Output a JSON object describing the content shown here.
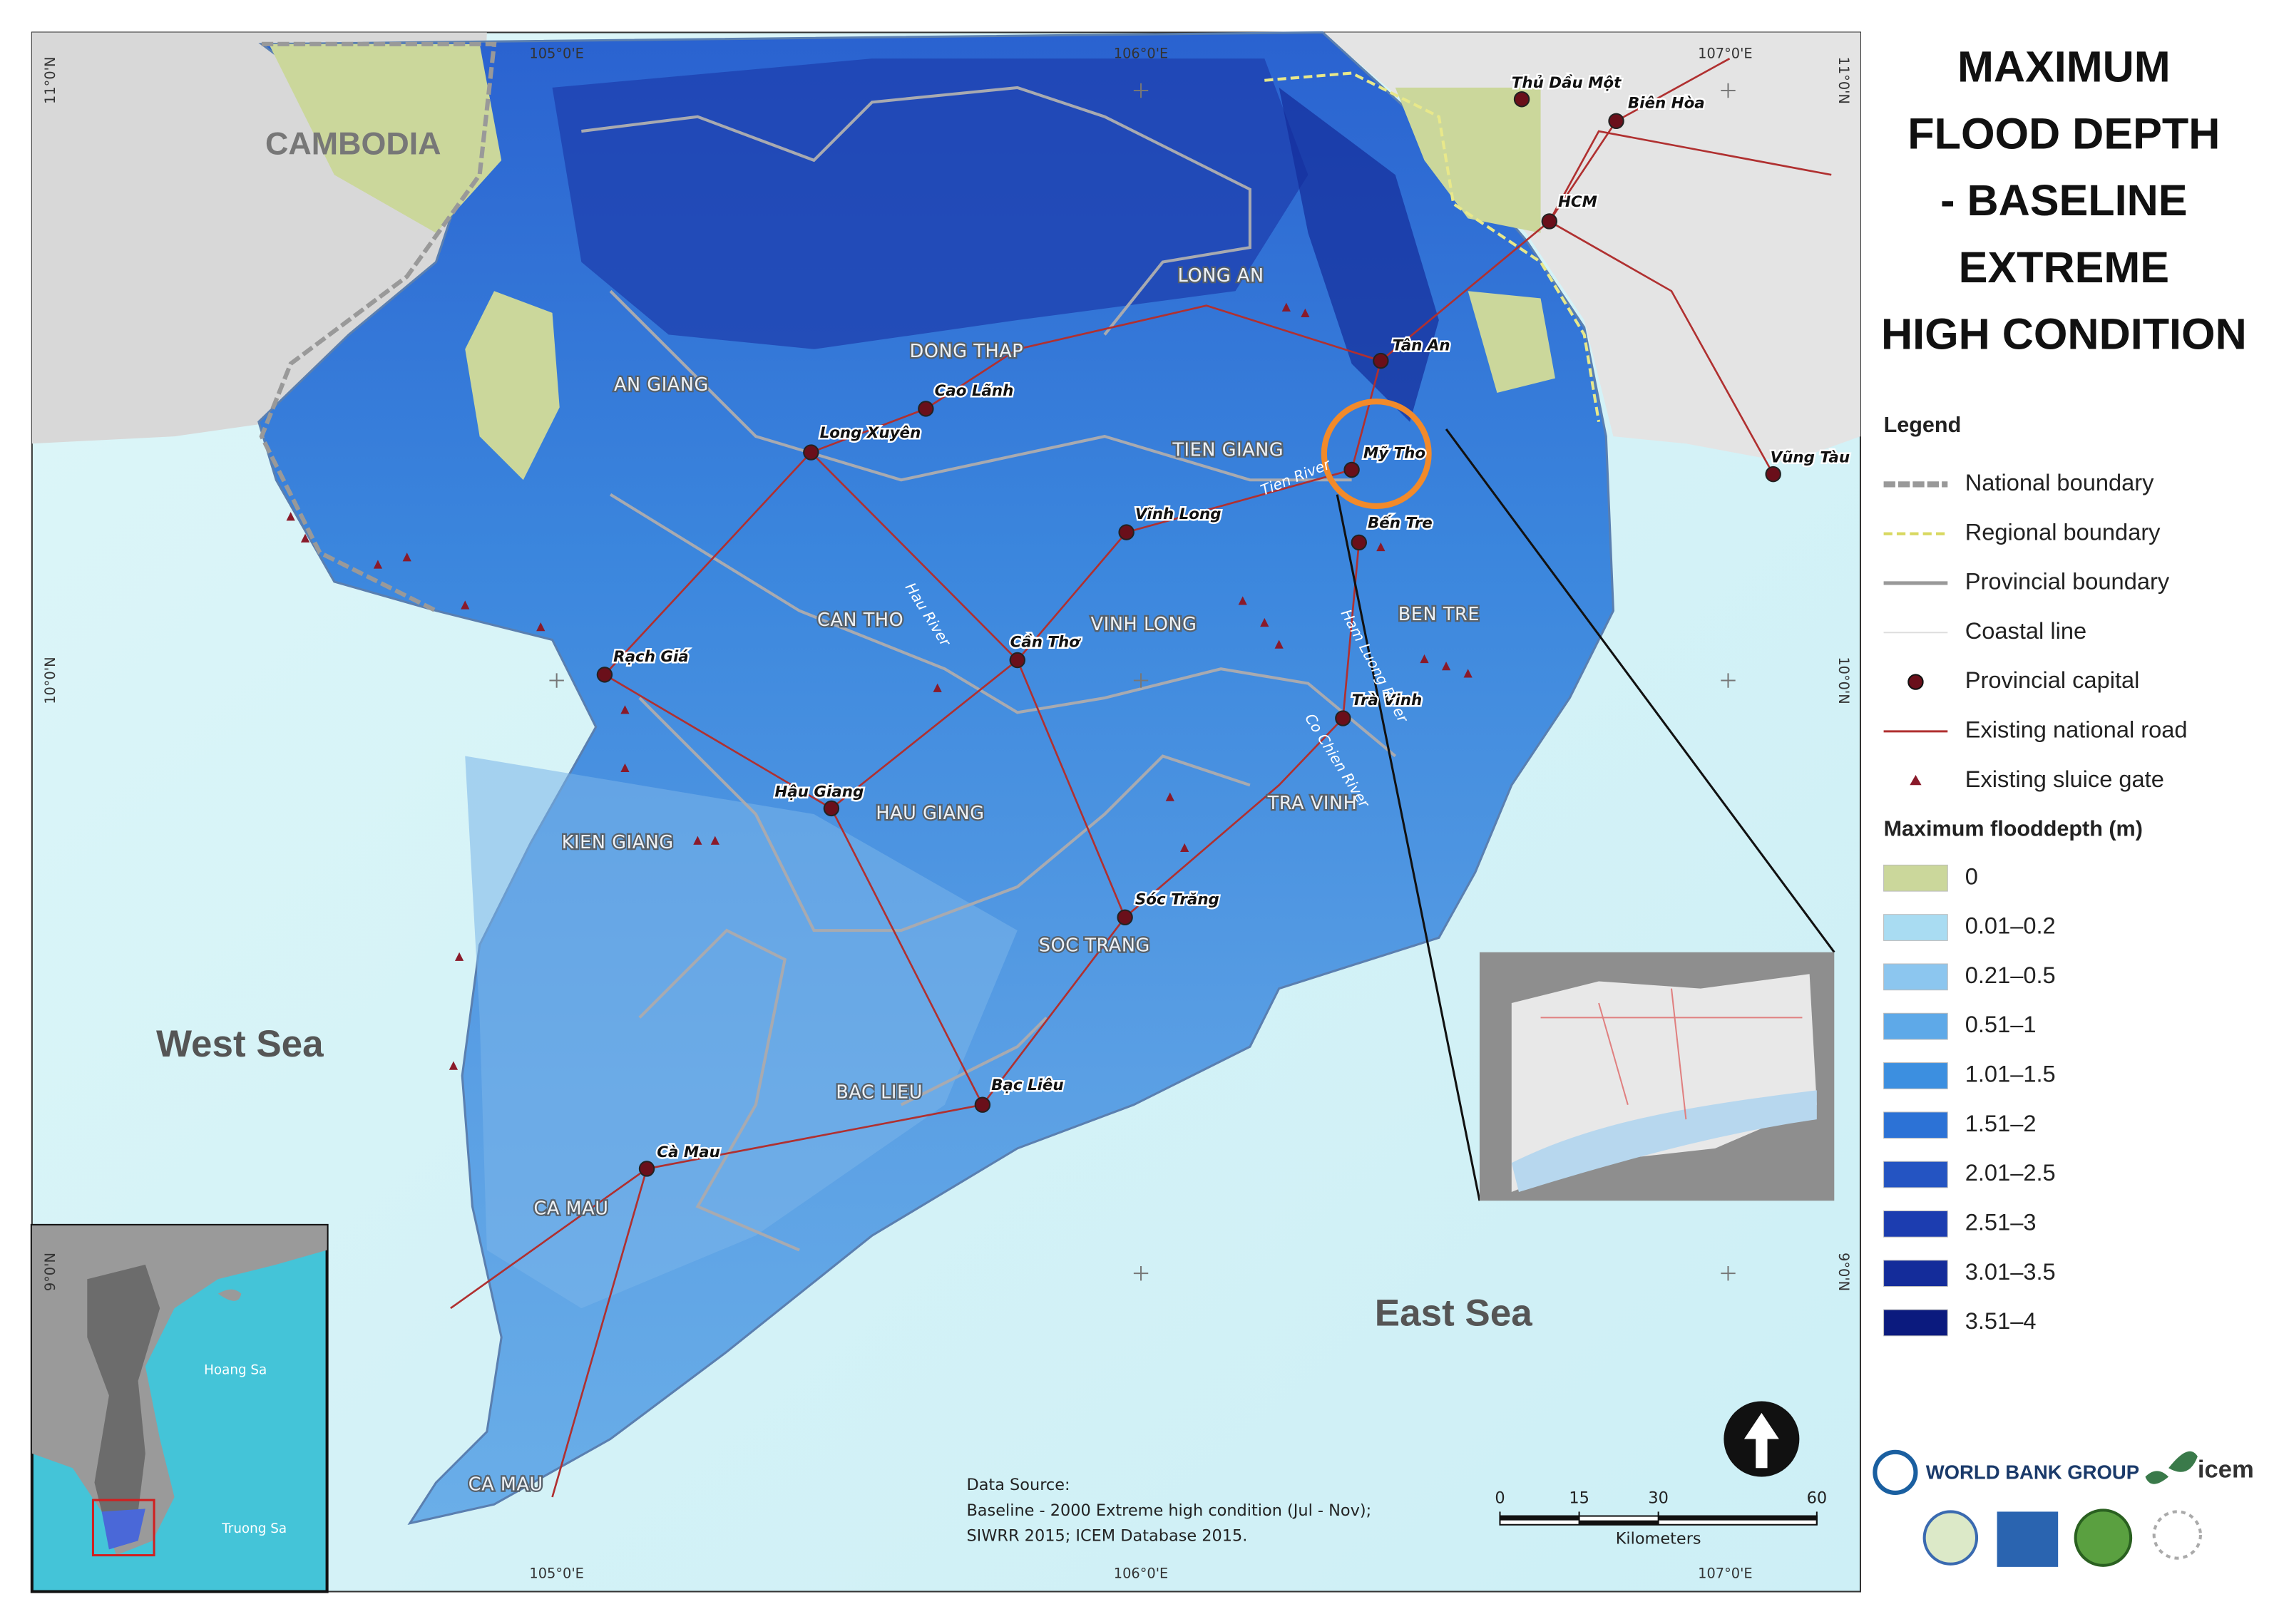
{
  "title_lines": [
    "MAXIMUM",
    "FLOOD DEPTH",
    "- BASELINE",
    "EXTREME",
    "HIGH CONDITION"
  ],
  "legend": {
    "title": "Legend",
    "items": [
      "National boundary",
      "Regional boundary",
      "Provincial boundary",
      "Coastal line",
      "Provincial capital",
      "Existing national road",
      "Existing sluice gate"
    ],
    "depth_title": "Maximum flooddepth (m)",
    "depth_classes": [
      {
        "label": "0",
        "color": "#cbd79b"
      },
      {
        "label": "0.01–0.2",
        "color": "#a9dcf2"
      },
      {
        "label": "0.21–0.5",
        "color": "#8cc6ef"
      },
      {
        "label": "0.51–1",
        "color": "#5ea9e8"
      },
      {
        "label": "1.01–1.5",
        "color": "#3c8fe0"
      },
      {
        "label": "1.51–2",
        "color": "#2c72d6"
      },
      {
        "label": "2.01–2.5",
        "color": "#2454c2"
      },
      {
        "label": "2.51–3",
        "color": "#1c3db0"
      },
      {
        "label": "3.01–3.5",
        "color": "#142c9a"
      },
      {
        "label": "3.51–4",
        "color": "#0b1a7e"
      }
    ]
  },
  "country_label": "CAMBODIA",
  "seas": [
    "West Sea",
    "East Sea"
  ],
  "provinces": [
    "LONG AN",
    "DONG THAP",
    "AN GIANG",
    "TIEN GIANG",
    "CAN THO",
    "VINH LONG",
    "BEN TRE",
    "TRA VINH",
    "HAU GIANG",
    "KIEN GIANG",
    "SOC TRANG",
    "BAC LIEU",
    "CA MAU",
    "CA MAU"
  ],
  "capitals": [
    "Thủ Dầu Một",
    "Biên Hòa",
    "HCM",
    "Tân An",
    "Cao Lãnh",
    "Long Xuyên",
    "Mỹ Tho",
    "Vũng Tàu",
    "Vĩnh Long",
    "Bến Tre",
    "Rạch Giá",
    "Cần Thơ",
    "Trà Vinh",
    "Hậu Giang",
    "Sóc Trăng",
    "Bạc Liêu",
    "Cà Mau"
  ],
  "rivers": [
    "Tien River",
    "Hau River",
    "Ham Luong River",
    "Co Chien River"
  ],
  "coordinates": {
    "top": [
      "105°0'E",
      "106°0'E",
      "107°0'E"
    ],
    "bottom": [
      "105°0'E",
      "106°0'E",
      "107°0'E"
    ],
    "left": [
      "11°0'N",
      "10°0'N",
      "9°0'N"
    ],
    "right": [
      "11°0'N",
      "10°0'N",
      "9°0'N"
    ]
  },
  "data_source": [
    "Data Source:",
    "Baseline - 2000 Extreme high condition (Jul - Nov);",
    "SIWRR 2015; ICEM Database 2015."
  ],
  "scale_bar": {
    "ticks": [
      0,
      15,
      30,
      60
    ],
    "unit": "Kilometers"
  },
  "inset_labels": [
    "Hoang Sa",
    "Truong Sa"
  ],
  "logos": [
    "WORLD BANK GROUP",
    "icem"
  ]
}
